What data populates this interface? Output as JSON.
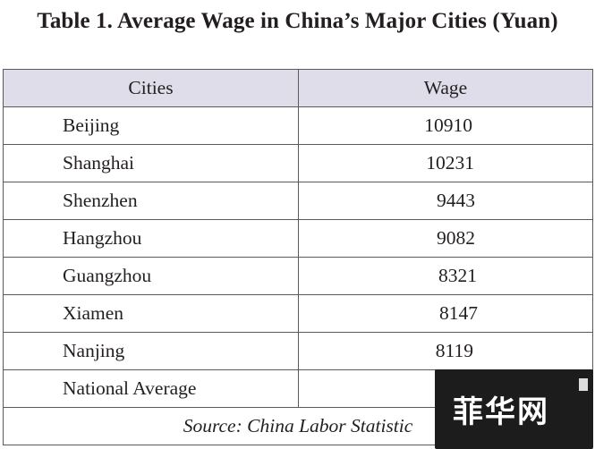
{
  "title": "Table 1. Average Wage in China’s Major Cities (Yuan)",
  "table": {
    "headers": [
      "Cities",
      "Wage"
    ],
    "rows": [
      {
        "city": "Beijing",
        "wage": "10910"
      },
      {
        "city": "Shanghai",
        "wage": "10231"
      },
      {
        "city": "Shenzhen",
        "wage": "9443"
      },
      {
        "city": "Hangzhou",
        "wage": "9082"
      },
      {
        "city": "Guangzhou",
        "wage": "8321"
      },
      {
        "city": "Xiamen",
        "wage": "8147"
      },
      {
        "city": "Nanjing",
        "wage": "8119"
      },
      {
        "city": "National Average",
        "wage": ""
      }
    ],
    "source": "Source: China Labor Statistic"
  },
  "watermark": {
    "text": "菲华网"
  }
}
